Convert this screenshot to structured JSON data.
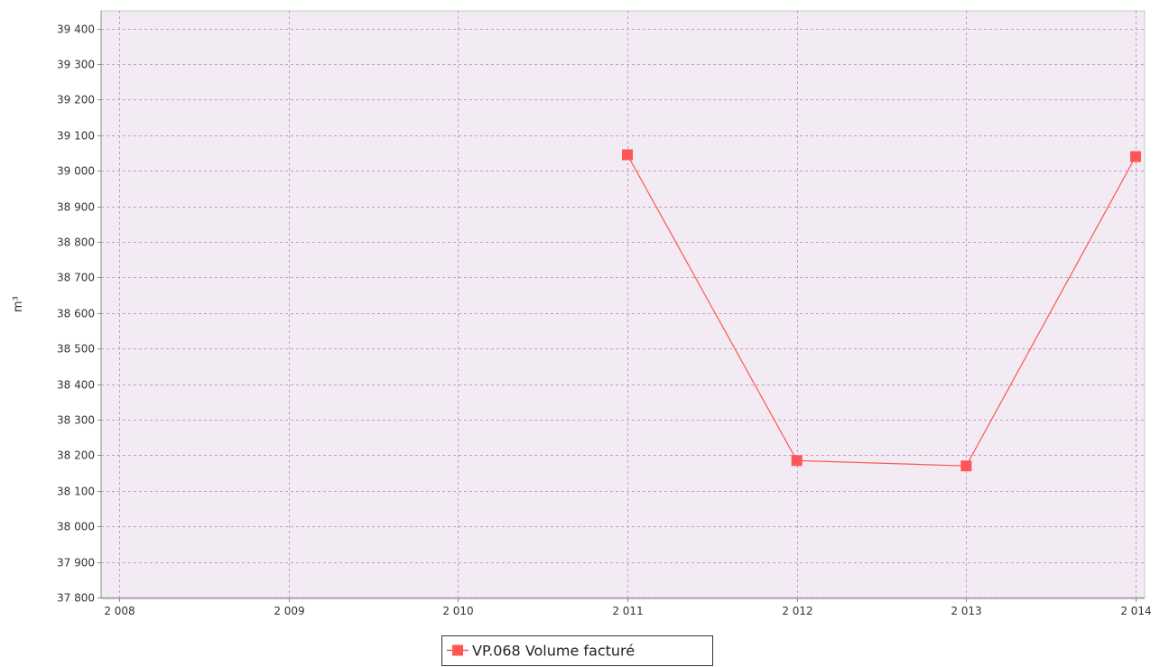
{
  "chart_data": {
    "type": "line",
    "ylabel": "m³",
    "xlabel": "",
    "x": [
      2011,
      2012,
      2013,
      2014
    ],
    "xlim": [
      2008,
      2014
    ],
    "ylim": [
      37800,
      39450
    ],
    "x_ticks": [
      2008,
      2009,
      2010,
      2011,
      2012,
      2013,
      2014
    ],
    "x_tick_labels": [
      "2 008",
      "2 009",
      "2 010",
      "2 011",
      "2 012",
      "2 013",
      "2 014"
    ],
    "y_ticks": [
      37800,
      37900,
      38000,
      38100,
      38200,
      38300,
      38400,
      38500,
      38600,
      38700,
      38800,
      38900,
      39000,
      39100,
      39200,
      39300,
      39400
    ],
    "y_tick_labels": [
      "37 800",
      "37 900",
      "38 000",
      "38 100",
      "38 200",
      "38 300",
      "38 400",
      "38 500",
      "38 600",
      "38 700",
      "38 800",
      "38 900",
      "39 000",
      "39 100",
      "39 200",
      "39 300",
      "39 400"
    ],
    "series": [
      {
        "name": "VP.068 Volume facturé",
        "values": [
          39045,
          38185,
          38170,
          39040
        ],
        "color": "#ff5555"
      }
    ],
    "grid": true,
    "legend_position": "bottom-center",
    "colors": {
      "plot_background": "#f2ebf3",
      "gridline": "#c79bc7",
      "axis": "#8a8a8a"
    }
  }
}
